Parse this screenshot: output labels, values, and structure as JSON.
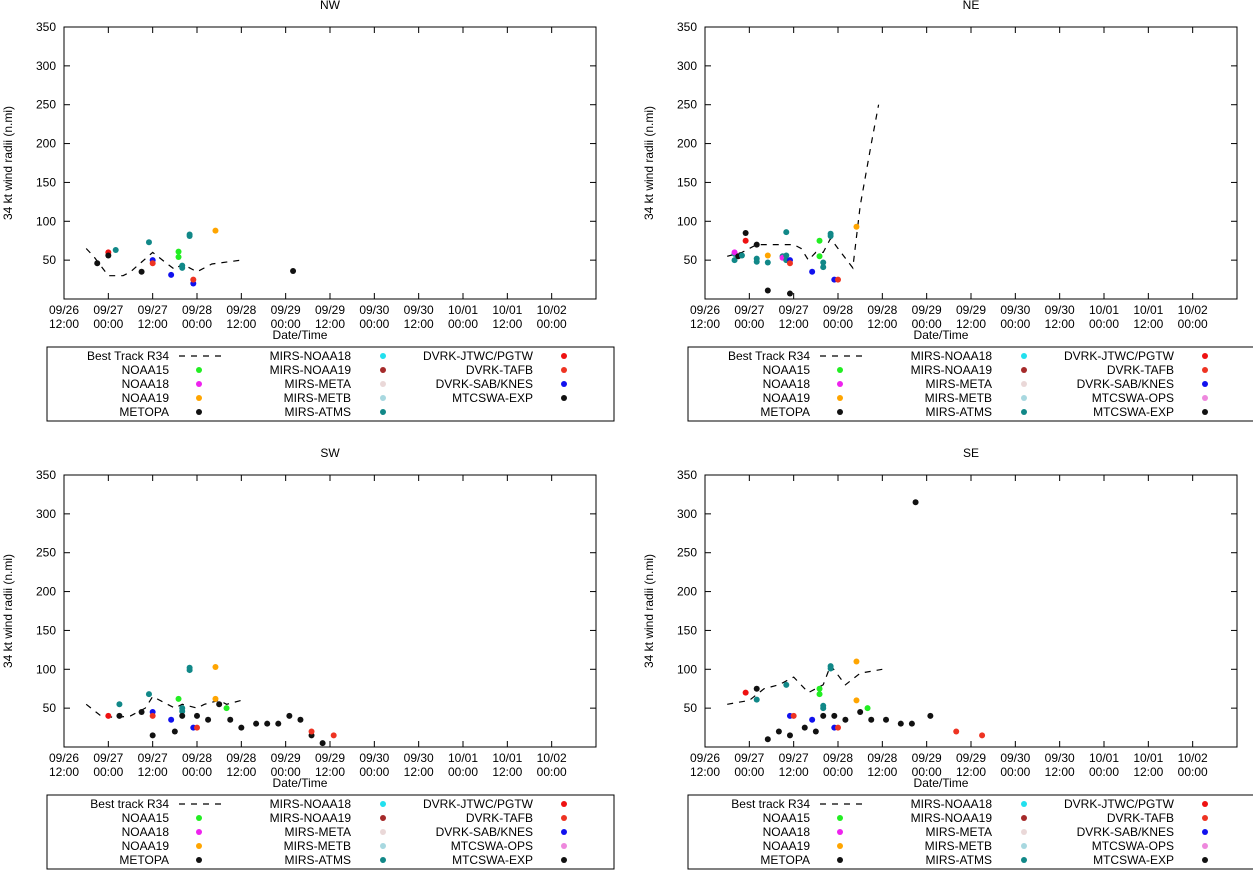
{
  "chart_data": [
    {
      "type": "scatter",
      "title": "NW",
      "xlabel": "Date/Time",
      "ylabel": "34 kt wind radii (n.mi)",
      "ylim": [
        0,
        350
      ],
      "yticks": [
        50,
        100,
        150,
        200,
        250,
        300,
        350
      ],
      "xlim_hours": [
        0,
        144
      ],
      "xticks": [
        [
          "09/26",
          "12:00"
        ],
        [
          "09/27",
          "00:00"
        ],
        [
          "09/27",
          "12:00"
        ],
        [
          "09/28",
          "00:00"
        ],
        [
          "09/28",
          "12:00"
        ],
        [
          "09/29",
          "00:00"
        ],
        [
          "09/29",
          "12:00"
        ],
        [
          "09/30",
          "00:00"
        ],
        [
          "09/30",
          "12:00"
        ],
        [
          "10/01",
          "00:00"
        ],
        [
          "10/01",
          "12:00"
        ],
        [
          "10/02",
          "00:00"
        ]
      ],
      "best_track": [
        [
          6,
          65
        ],
        [
          8,
          55
        ],
        [
          12,
          30
        ],
        [
          16,
          30
        ],
        [
          18,
          35
        ],
        [
          24,
          60
        ],
        [
          28,
          45
        ],
        [
          30,
          38
        ],
        [
          32,
          45
        ],
        [
          36,
          35
        ],
        [
          40,
          45
        ],
        [
          48,
          50
        ]
      ],
      "points": [
        {
          "s": "MTCSWA-EXP",
          "x": 9,
          "y": 46
        },
        {
          "s": "DVRK-JTWC/PGTW",
          "x": 12,
          "y": 60
        },
        {
          "s": "MTCSWA-EXP",
          "x": 12,
          "y": 56
        },
        {
          "s": "MIRS-ATMS",
          "x": 14,
          "y": 63
        },
        {
          "s": "MTCSWA-EXP",
          "x": 21,
          "y": 35
        },
        {
          "s": "MIRS-ATMS",
          "x": 23,
          "y": 73
        },
        {
          "s": "DVRK-SAB/KNES",
          "x": 24,
          "y": 50
        },
        {
          "s": "DVRK-TAFB",
          "x": 24,
          "y": 46
        },
        {
          "s": "NOAA15",
          "x": 31,
          "y": 61
        },
        {
          "s": "NOAA15",
          "x": 31,
          "y": 54
        },
        {
          "s": "DVRK-SAB/KNES",
          "x": 29,
          "y": 31
        },
        {
          "s": "MIRS-ATMS",
          "x": 32,
          "y": 43
        },
        {
          "s": "MIRS-ATMS",
          "x": 32,
          "y": 40
        },
        {
          "s": "MIRS-ATMS",
          "x": 34,
          "y": 83
        },
        {
          "s": "MIRS-ATMS",
          "x": 34,
          "y": 81
        },
        {
          "s": "DVRK-SAB/KNES",
          "x": 35,
          "y": 20
        },
        {
          "s": "DVRK-TAFB",
          "x": 35,
          "y": 25
        },
        {
          "s": "NOAA19",
          "x": 41,
          "y": 88
        },
        {
          "s": "MTCSWA-EXP",
          "x": 62,
          "y": 36
        }
      ],
      "legend": [
        "Best Track R34",
        "NOAA15",
        "NOAA18",
        "NOAA19",
        "METOPA",
        "MIRS-NOAA18",
        "MIRS-NOAA19",
        "MIRS-META",
        "MIRS-METB",
        "MIRS-ATMS",
        "DVRK-JTWC/PGTW",
        "DVRK-TAFB",
        "DVRK-SAB/KNES",
        "MTCSWA-EXP"
      ]
    },
    {
      "type": "scatter",
      "title": "NE",
      "xlabel": "Date/Time",
      "ylabel": "34 kt wind radii (n.mi)",
      "ylim": [
        0,
        350
      ],
      "yticks": [
        50,
        100,
        150,
        200,
        250,
        300,
        350
      ],
      "xlim_hours": [
        0,
        144
      ],
      "xticks": [
        [
          "09/26",
          "12:00"
        ],
        [
          "09/27",
          "00:00"
        ],
        [
          "09/27",
          "12:00"
        ],
        [
          "09/28",
          "00:00"
        ],
        [
          "09/28",
          "12:00"
        ],
        [
          "09/29",
          "00:00"
        ],
        [
          "09/29",
          "12:00"
        ],
        [
          "09/30",
          "00:00"
        ],
        [
          "09/30",
          "12:00"
        ],
        [
          "10/01",
          "00:00"
        ],
        [
          "10/01",
          "12:00"
        ],
        [
          "10/02",
          "00:00"
        ]
      ],
      "best_track": [
        [
          6,
          55
        ],
        [
          10,
          60
        ],
        [
          14,
          70
        ],
        [
          18,
          70
        ],
        [
          22,
          70
        ],
        [
          24,
          70
        ],
        [
          26,
          65
        ],
        [
          28,
          50
        ],
        [
          30,
          60
        ],
        [
          32,
          60
        ],
        [
          34,
          78
        ],
        [
          36,
          65
        ],
        [
          40,
          40
        ],
        [
          42,
          120
        ],
        [
          45,
          200
        ],
        [
          47,
          250
        ]
      ],
      "points": [
        {
          "s": "MIRS-ATMS",
          "x": 8,
          "y": 58
        },
        {
          "s": "NOAA18",
          "x": 8,
          "y": 60
        },
        {
          "s": "MIRS-ATMS",
          "x": 8,
          "y": 50
        },
        {
          "s": "MTCSWA-EXP",
          "x": 9,
          "y": 55
        },
        {
          "s": "MIRS-ATMS",
          "x": 10,
          "y": 56
        },
        {
          "s": "DVRK-JTWC/PGTW",
          "x": 11,
          "y": 75
        },
        {
          "s": "MTCSWA-EXP",
          "x": 11,
          "y": 85
        },
        {
          "s": "MTCSWA-EXP",
          "x": 14,
          "y": 70
        },
        {
          "s": "MIRS-ATMS",
          "x": 14,
          "y": 52
        },
        {
          "s": "MIRS-ATMS",
          "x": 14,
          "y": 48
        },
        {
          "s": "NOAA19",
          "x": 17,
          "y": 56
        },
        {
          "s": "MIRS-ATMS",
          "x": 17,
          "y": 47
        },
        {
          "s": "MTCSWA-EXP",
          "x": 17,
          "y": 11
        },
        {
          "s": "MIRS-ATMS",
          "x": 21,
          "y": 55
        },
        {
          "s": "NOAA18",
          "x": 21,
          "y": 53
        },
        {
          "s": "MIRS-ATMS",
          "x": 22,
          "y": 86
        },
        {
          "s": "MIRS-ATMS",
          "x": 22,
          "y": 56
        },
        {
          "s": "MIRS-ATMS",
          "x": 22,
          "y": 50
        },
        {
          "s": "DVRK-SAB/KNES",
          "x": 23,
          "y": 50
        },
        {
          "s": "DVRK-TAFB",
          "x": 23,
          "y": 46
        },
        {
          "s": "MTCSWA-EXP",
          "x": 23,
          "y": 7
        },
        {
          "s": "DVRK-SAB/KNES",
          "x": 29,
          "y": 35
        },
        {
          "s": "NOAA15",
          "x": 31,
          "y": 75
        },
        {
          "s": "NOAA15",
          "x": 31,
          "y": 55
        },
        {
          "s": "MIRS-ATMS",
          "x": 32,
          "y": 47
        },
        {
          "s": "MIRS-ATMS",
          "x": 32,
          "y": 41
        },
        {
          "s": "MIRS-ATMS",
          "x": 34,
          "y": 84
        },
        {
          "s": "MIRS-ATMS",
          "x": 34,
          "y": 81
        },
        {
          "s": "DVRK-SAB/KNES",
          "x": 35,
          "y": 25
        },
        {
          "s": "DVRK-TAFB",
          "x": 36,
          "y": 25
        },
        {
          "s": "NOAA19",
          "x": 41,
          "y": 93
        }
      ],
      "legend": [
        "Best Track R34",
        "NOAA15",
        "NOAA18",
        "NOAA19",
        "METOPA",
        "MIRS-NOAA18",
        "MIRS-NOAA19",
        "MIRS-META",
        "MIRS-METB",
        "MIRS-ATMS",
        "DVRK-JTWC/PGTW",
        "DVRK-TAFB",
        "DVRK-SAB/KNES",
        "MTCSWA-OPS",
        "MTCSWA-EXP"
      ]
    },
    {
      "type": "scatter",
      "title": "SW",
      "xlabel": "Date/Time",
      "ylabel": "34 kt wind radii (n.mi)",
      "ylim": [
        0,
        350
      ],
      "yticks": [
        50,
        100,
        150,
        200,
        250,
        300,
        350
      ],
      "xlim_hours": [
        0,
        144
      ],
      "xticks": [
        [
          "09/26",
          "12:00"
        ],
        [
          "09/27",
          "00:00"
        ],
        [
          "09/27",
          "12:00"
        ],
        [
          "09/28",
          "00:00"
        ],
        [
          "09/28",
          "12:00"
        ],
        [
          "09/29",
          "00:00"
        ],
        [
          "09/29",
          "12:00"
        ],
        [
          "09/30",
          "00:00"
        ],
        [
          "09/30",
          "12:00"
        ],
        [
          "10/01",
          "00:00"
        ],
        [
          "10/01",
          "12:00"
        ],
        [
          "10/02",
          "00:00"
        ]
      ],
      "best_track": [
        [
          6,
          55
        ],
        [
          10,
          40
        ],
        [
          14,
          38
        ],
        [
          18,
          40
        ],
        [
          22,
          50
        ],
        [
          24,
          65
        ],
        [
          28,
          55
        ],
        [
          30,
          50
        ],
        [
          32,
          55
        ],
        [
          36,
          50
        ],
        [
          38,
          55
        ],
        [
          42,
          60
        ],
        [
          44,
          55
        ],
        [
          48,
          60
        ]
      ],
      "points": [
        {
          "s": "DVRK-JTWC/PGTW",
          "x": 12,
          "y": 40
        },
        {
          "s": "MTCSWA-EXP",
          "x": 15,
          "y": 40
        },
        {
          "s": "MIRS-ATMS",
          "x": 15,
          "y": 55
        },
        {
          "s": "MTCSWA-EXP",
          "x": 21,
          "y": 45
        },
        {
          "s": "MIRS-ATMS",
          "x": 23,
          "y": 68
        },
        {
          "s": "DVRK-SAB/KNES",
          "x": 24,
          "y": 45
        },
        {
          "s": "DVRK-TAFB",
          "x": 24,
          "y": 40
        },
        {
          "s": "MTCSWA-EXP",
          "x": 24,
          "y": 15
        },
        {
          "s": "NOAA15",
          "x": 31,
          "y": 62
        },
        {
          "s": "DVRK-SAB/KNES",
          "x": 29,
          "y": 35
        },
        {
          "s": "MTCSWA-EXP",
          "x": 30,
          "y": 20
        },
        {
          "s": "MIRS-ATMS",
          "x": 32,
          "y": 50
        },
        {
          "s": "MIRS-ATMS",
          "x": 32,
          "y": 46
        },
        {
          "s": "MTCSWA-EXP",
          "x": 32,
          "y": 40
        },
        {
          "s": "MIRS-ATMS",
          "x": 34,
          "y": 102
        },
        {
          "s": "MIRS-ATMS",
          "x": 34,
          "y": 99
        },
        {
          "s": "DVRK-SAB/KNES",
          "x": 35,
          "y": 25
        },
        {
          "s": "DVRK-TAFB",
          "x": 36,
          "y": 25
        },
        {
          "s": "MTCSWA-EXP",
          "x": 36,
          "y": 40
        },
        {
          "s": "MTCSWA-EXP",
          "x": 39,
          "y": 35
        },
        {
          "s": "NOAA19",
          "x": 41,
          "y": 103
        },
        {
          "s": "NOAA19",
          "x": 41,
          "y": 62
        },
        {
          "s": "MTCSWA-EXP",
          "x": 42,
          "y": 55
        },
        {
          "s": "NOAA15",
          "x": 44,
          "y": 50
        },
        {
          "s": "MTCSWA-EXP",
          "x": 45,
          "y": 35
        },
        {
          "s": "MTCSWA-EXP",
          "x": 48,
          "y": 25
        },
        {
          "s": "MTCSWA-EXP",
          "x": 52,
          "y": 30
        },
        {
          "s": "MTCSWA-EXP",
          "x": 55,
          "y": 30
        },
        {
          "s": "MTCSWA-EXP",
          "x": 58,
          "y": 30
        },
        {
          "s": "MTCSWA-EXP",
          "x": 61,
          "y": 40
        },
        {
          "s": "MTCSWA-EXP",
          "x": 64,
          "y": 35
        },
        {
          "s": "MTCSWA-EXP",
          "x": 67,
          "y": 15
        },
        {
          "s": "DVRK-TAFB",
          "x": 67,
          "y": 20
        },
        {
          "s": "MTCSWA-EXP",
          "x": 70,
          "y": 5
        },
        {
          "s": "DVRK-TAFB",
          "x": 73,
          "y": 15
        }
      ],
      "legend": [
        "Best track R34",
        "NOAA15",
        "NOAA18",
        "NOAA19",
        "METOPA",
        "MIRS-NOAA18",
        "MIRS-NOAA19",
        "MIRS-META",
        "MIRS-METB",
        "MIRS-ATMS",
        "DVRK-JTWC/PGTW",
        "DVRK-TAFB",
        "DVRK-SAB/KNES",
        "MTCSWA-OPS",
        "MTCSWA-EXP"
      ]
    },
    {
      "type": "scatter",
      "title": "SE",
      "xlabel": "Date/Time",
      "ylabel": "34 kt wind radii (n.mi)",
      "ylim": [
        0,
        350
      ],
      "yticks": [
        50,
        100,
        150,
        200,
        250,
        300,
        350
      ],
      "xlim_hours": [
        0,
        144
      ],
      "xticks": [
        [
          "09/26",
          "12:00"
        ],
        [
          "09/27",
          "00:00"
        ],
        [
          "09/27",
          "12:00"
        ],
        [
          "09/28",
          "00:00"
        ],
        [
          "09/28",
          "12:00"
        ],
        [
          "09/29",
          "00:00"
        ],
        [
          "09/29",
          "12:00"
        ],
        [
          "09/30",
          "00:00"
        ],
        [
          "09/30",
          "12:00"
        ],
        [
          "10/01",
          "00:00"
        ],
        [
          "10/01",
          "12:00"
        ],
        [
          "10/02",
          "00:00"
        ]
      ],
      "best_track": [
        [
          6,
          55
        ],
        [
          12,
          60
        ],
        [
          16,
          75
        ],
        [
          20,
          80
        ],
        [
          24,
          90
        ],
        [
          28,
          70
        ],
        [
          30,
          75
        ],
        [
          32,
          80
        ],
        [
          34,
          105
        ],
        [
          38,
          80
        ],
        [
          42,
          95
        ],
        [
          48,
          100
        ]
      ],
      "points": [
        {
          "s": "DVRK-JTWC/PGTW",
          "x": 11,
          "y": 70
        },
        {
          "s": "MTCSWA-EXP",
          "x": 14,
          "y": 75
        },
        {
          "s": "MIRS-ATMS",
          "x": 14,
          "y": 61
        },
        {
          "s": "MTCSWA-EXP",
          "x": 17,
          "y": 10
        },
        {
          "s": "MTCSWA-EXP",
          "x": 20,
          "y": 20
        },
        {
          "s": "MIRS-ATMS",
          "x": 22,
          "y": 80
        },
        {
          "s": "DVRK-SAB/KNES",
          "x": 23,
          "y": 40
        },
        {
          "s": "DVRK-TAFB",
          "x": 24,
          "y": 40
        },
        {
          "s": "MTCSWA-EXP",
          "x": 23,
          "y": 15
        },
        {
          "s": "MTCSWA-EXP",
          "x": 27,
          "y": 25
        },
        {
          "s": "DVRK-SAB/KNES",
          "x": 29,
          "y": 35
        },
        {
          "s": "MTCSWA-EXP",
          "x": 30,
          "y": 20
        },
        {
          "s": "NOAA15",
          "x": 31,
          "y": 75
        },
        {
          "s": "NOAA15",
          "x": 31,
          "y": 68
        },
        {
          "s": "MIRS-ATMS",
          "x": 32,
          "y": 53
        },
        {
          "s": "MIRS-ATMS",
          "x": 32,
          "y": 50
        },
        {
          "s": "MTCSWA-EXP",
          "x": 32,
          "y": 40
        },
        {
          "s": "MIRS-ATMS",
          "x": 34,
          "y": 104
        },
        {
          "s": "MIRS-ATMS",
          "x": 34,
          "y": 101
        },
        {
          "s": "DVRK-SAB/KNES",
          "x": 35,
          "y": 25
        },
        {
          "s": "DVRK-TAFB",
          "x": 36,
          "y": 25
        },
        {
          "s": "MTCSWA-EXP",
          "x": 35,
          "y": 40
        },
        {
          "s": "MTCSWA-EXP",
          "x": 38,
          "y": 35
        },
        {
          "s": "NOAA19",
          "x": 41,
          "y": 110
        },
        {
          "s": "NOAA19",
          "x": 41,
          "y": 60
        },
        {
          "s": "MTCSWA-EXP",
          "x": 42,
          "y": 45
        },
        {
          "s": "NOAA15",
          "x": 44,
          "y": 50
        },
        {
          "s": "MTCSWA-EXP",
          "x": 45,
          "y": 35
        },
        {
          "s": "MTCSWA-EXP",
          "x": 49,
          "y": 35
        },
        {
          "s": "MTCSWA-EXP",
          "x": 53,
          "y": 30
        },
        {
          "s": "MTCSWA-EXP",
          "x": 56,
          "y": 30
        },
        {
          "s": "MTCSWA-EXP",
          "x": 57,
          "y": 315
        },
        {
          "s": "MTCSWA-EXP",
          "x": 61,
          "y": 40
        },
        {
          "s": "DVRK-TAFB",
          "x": 68,
          "y": 20
        },
        {
          "s": "DVRK-TAFB",
          "x": 75,
          "y": 15
        }
      ],
      "legend": [
        "Best track R34",
        "NOAA15",
        "NOAA18",
        "NOAA19",
        "METOPA",
        "MIRS-NOAA18",
        "MIRS-NOAA19",
        "MIRS-META",
        "MIRS-METB",
        "MIRS-ATMS",
        "DVRK-JTWC/PGTW",
        "DVRK-TAFB",
        "DVRK-SAB/KNES",
        "MTCSWA-OPS",
        "MTCSWA-EXP"
      ]
    }
  ],
  "colors": {
    "NOAA15": "#22ee22",
    "NOAA18": "#ee22ee",
    "NOAA19": "#ffa500",
    "METOPA": "#111111",
    "MIRS-NOAA18": "#22e0ee",
    "MIRS-NOAA19": "#a52a2a",
    "MIRS-META": "#ead8d8",
    "MIRS-METB": "#a8d8e0",
    "MIRS-ATMS": "#118888",
    "DVRK-JTWC/PGTW": "#ee1111",
    "DVRK-TAFB": "#ee3322",
    "DVRK-SAB/KNES": "#1111ee",
    "MTCSWA-OPS": "#ee88dd",
    "MTCSWA-EXP": "#111111"
  }
}
